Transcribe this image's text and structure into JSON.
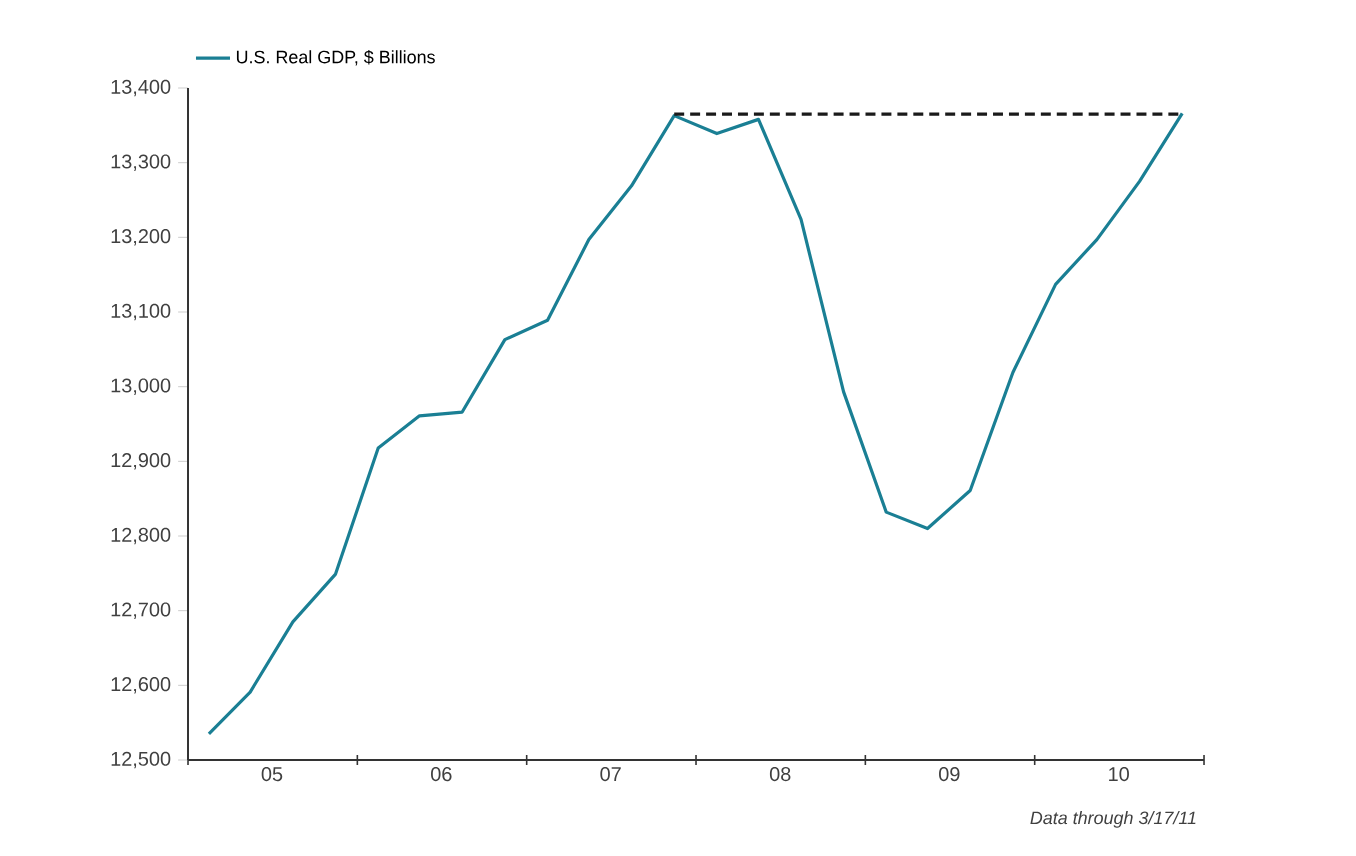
{
  "chart_data": {
    "type": "line",
    "x": [
      "2005-02-15",
      "2005-05-15",
      "2005-08-15",
      "2005-11-15",
      "2006-02-15",
      "2006-05-15",
      "2006-08-15",
      "2006-11-15",
      "2007-02-15",
      "2007-05-15",
      "2007-08-15",
      "2007-11-15",
      "2008-02-15",
      "2008-05-15",
      "2008-08-15",
      "2008-11-15",
      "2009-02-15",
      "2009-05-15",
      "2009-08-15",
      "2009-11-15",
      "2010-02-15",
      "2010-05-15",
      "2010-08-15",
      "2010-11-15"
    ],
    "series": [
      {
        "name": "U.S. Real GDP, $ Billions",
        "color": "#1a7f94",
        "values": [
          12535,
          12591,
          12685,
          12749,
          12918,
          12961,
          12966,
          13063,
          13089,
          13197,
          13269,
          13363,
          13339,
          13358,
          13224,
          12993,
          12832,
          12810,
          12861,
          13019,
          13137,
          13197,
          13275,
          13366
        ]
      },
      {
        "type": "line",
        "color": "#1a1a1a",
        "line_style": "dashed",
        "x": [
          "2007-11-15",
          "2010-11-15"
        ],
        "values": [
          13365,
          13365
        ]
      }
    ],
    "xlim": [
      "2005-01-01",
      "2011-01-01"
    ],
    "xticks": [
      {
        "value": "2005-07-01",
        "label": "05"
      },
      {
        "value": "2006-07-01",
        "label": "06"
      },
      {
        "value": "2007-07-01",
        "label": "07"
      },
      {
        "value": "2008-07-01",
        "label": "08"
      },
      {
        "value": "2009-07-01",
        "label": "09"
      },
      {
        "value": "2010-07-01",
        "label": "10"
      },
      {
        "value": "2005-01-01",
        "label": null
      },
      {
        "value": "2006-01-01",
        "label": null
      },
      {
        "value": "2007-01-01",
        "label": null
      },
      {
        "value": "2008-01-01",
        "label": null
      },
      {
        "value": "2009-01-01",
        "label": null
      },
      {
        "value": "2010-01-01",
        "label": null
      },
      {
        "value": "2011-01-01",
        "label": null
      }
    ],
    "ylim": [
      12500,
      13400
    ],
    "yticks": [
      {
        "value": 12500,
        "label": "12,500"
      },
      {
        "value": 12600,
        "label": "12,600"
      },
      {
        "value": 12700,
        "label": "12,700"
      },
      {
        "value": 12800,
        "label": "12,800"
      },
      {
        "value": 12900,
        "label": "12,900"
      },
      {
        "value": 13000,
        "label": "13,000"
      },
      {
        "value": 13100,
        "label": "13,100"
      },
      {
        "value": 13200,
        "label": "13,200"
      },
      {
        "value": 13300,
        "label": "13,300"
      },
      {
        "value": 13400,
        "label": "13,400"
      }
    ],
    "grid": false,
    "legend": "top left",
    "annotations": [
      "Data through 3/17/11"
    ]
  }
}
